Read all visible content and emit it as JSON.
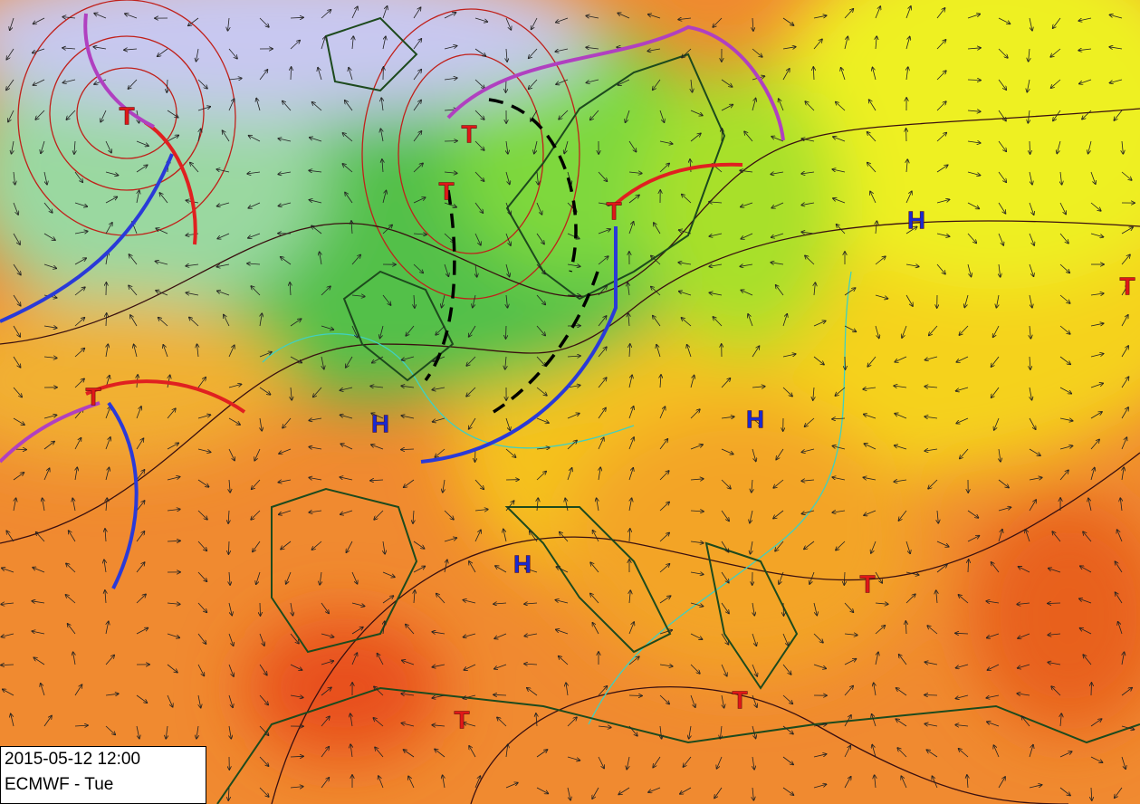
{
  "info": {
    "datetime": "2015-05-12 12:00",
    "model": "ECMWF - Tue"
  },
  "centers": [
    {
      "label": "T"
    },
    {
      "label": "T"
    },
    {
      "label": "T"
    },
    {
      "label": "T"
    },
    {
      "label": "T"
    },
    {
      "label": "T"
    },
    {
      "label": "T"
    },
    {
      "label": "T"
    },
    {
      "label": "T"
    },
    {
      "label": "H"
    },
    {
      "label": "H"
    },
    {
      "label": "H"
    },
    {
      "label": "H"
    }
  ]
}
